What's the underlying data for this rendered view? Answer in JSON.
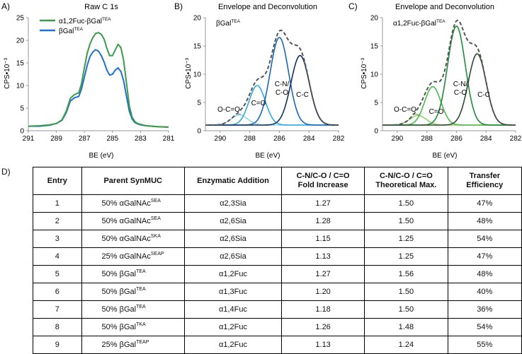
{
  "figure_labels": {
    "a": "A)",
    "b": "B)",
    "c": "C)",
    "d": "D)"
  },
  "colors": {
    "fuc_green": "#3c9a4a",
    "gal_blue": "#1f6fd0",
    "envelope_gray": "#555555",
    "baseline_blue": "#7fd0f0",
    "baseline_green": "#8ed26a"
  },
  "chart_data": [
    {
      "id": "A",
      "type": "line",
      "title": "Raw C 1s",
      "xlabel": "BE (eV)",
      "ylabel": "CPS•10⁻³",
      "xlim": [
        291,
        281
      ],
      "ylim": [
        0,
        25
      ],
      "xticks": [
        291,
        289,
        287,
        285,
        283,
        281
      ],
      "yticks": [
        0,
        5,
        10,
        15,
        20,
        25
      ],
      "legend": [
        "α1,2Fuc-βGal",
        "βGal"
      ],
      "legend_sup": [
        "TEA",
        "TEA"
      ],
      "series": [
        {
          "name": "α1,2Fuc-βGal",
          "sup": "TEA",
          "color": "#3c9a4a",
          "x": [
            291,
            290.2,
            289.5,
            289,
            288.6,
            288.3,
            288,
            287.7,
            287.4,
            287.2,
            287,
            286.8,
            286.6,
            286.4,
            286.2,
            286,
            285.8,
            285.6,
            285.4,
            285.2,
            285,
            284.8,
            284.6,
            284.4,
            284.2,
            284,
            283.8,
            283.6,
            283.4,
            283.2,
            283,
            282.6,
            282.2,
            281.8,
            281
          ],
          "values": [
            1.0,
            1.1,
            1.3,
            1.6,
            2.4,
            4.3,
            7.2,
            8.0,
            8.4,
            10.5,
            14.0,
            17.2,
            19.2,
            20.6,
            21.5,
            21.7,
            21.3,
            20.3,
            18.2,
            16.6,
            16.6,
            17.9,
            19.1,
            18.4,
            15.5,
            10.5,
            5.5,
            3.0,
            2.0,
            1.6,
            1.4,
            1.1,
            1.0,
            0.9,
            0.8
          ]
        },
        {
          "name": "βGal",
          "sup": "TEA",
          "color": "#1f6fd0",
          "x": [
            291,
            290.2,
            289.5,
            289,
            288.6,
            288.3,
            288,
            287.7,
            287.4,
            287.2,
            287,
            286.8,
            286.6,
            286.4,
            286.2,
            286,
            285.8,
            285.6,
            285.4,
            285.2,
            285,
            284.8,
            284.6,
            284.4,
            284.2,
            284,
            283.8,
            283.6,
            283.4,
            283.2,
            283,
            282.6,
            282.2,
            281.8,
            281
          ],
          "values": [
            1.0,
            1.0,
            1.2,
            1.6,
            2.3,
            4.0,
            6.6,
            7.3,
            7.6,
            9.3,
            11.9,
            14.5,
            16.4,
            17.4,
            17.9,
            17.6,
            16.6,
            15.2,
            13.4,
            12.3,
            12.5,
            13.4,
            13.9,
            13.1,
            11.0,
            7.6,
            4.3,
            2.6,
            1.8,
            1.5,
            1.3,
            1.1,
            1.0,
            0.9,
            0.8
          ]
        }
      ]
    },
    {
      "id": "B",
      "type": "line",
      "title": "Envelope and Deconvolution",
      "sample": "βGal",
      "sample_sup": "TEA",
      "xlabel": "BE (eV)",
      "ylabel": "CPS•10⁻³",
      "xlim": [
        291,
        282
      ],
      "ylim": [
        0,
        20
      ],
      "xticks": [
        290,
        288,
        286,
        284,
        282
      ],
      "yticks": [
        0,
        5,
        10,
        15,
        20
      ],
      "baseline": 1.0,
      "peaks": [
        {
          "label": "O-C=O",
          "center": 288.7,
          "height": 1.8,
          "sigma": 0.55,
          "color": "#8fd8f3"
        },
        {
          "label": "C=O",
          "center": 287.5,
          "height": 7.0,
          "sigma": 0.55,
          "color": "#2fa8e0"
        },
        {
          "label": "C-N/\nC-O",
          "center": 286.0,
          "height": 15.5,
          "sigma": 0.62,
          "color": "#1a67b8"
        },
        {
          "label": "C-C",
          "center": 284.6,
          "height": 12.3,
          "sigma": 0.62,
          "color": "#14305f"
        }
      ],
      "envelope": {
        "style": "dashed",
        "color": "#555555",
        "peak_max": 17.3
      }
    },
    {
      "id": "C",
      "type": "line",
      "title": "Envelope and Deconvolution",
      "sample": "α1,2Fuc-βGal",
      "sample_sup": "TEA",
      "xlabel": "BE (eV)",
      "ylabel": "CPS•10⁻³",
      "xlim": [
        291,
        282
      ],
      "ylim": [
        0,
        20
      ],
      "xticks": [
        290,
        288,
        286,
        284,
        282
      ],
      "yticks": [
        0,
        5,
        10,
        15,
        20
      ],
      "baseline": 1.0,
      "peaks": [
        {
          "label": "O-C=O",
          "center": 288.6,
          "height": 1.7,
          "sigma": 0.55,
          "color": "#8ed26a"
        },
        {
          "label": "C=O",
          "center": 287.6,
          "height": 6.8,
          "sigma": 0.55,
          "color": "#4fb84a"
        },
        {
          "label": "C-N/\nC-O",
          "center": 286.0,
          "height": 17.5,
          "sigma": 0.6,
          "color": "#1f8a3a"
        },
        {
          "label": "C-C",
          "center": 284.6,
          "height": 12.6,
          "sigma": 0.6,
          "color": "#2c4a2f"
        }
      ],
      "envelope": {
        "style": "dashed",
        "color": "#555555",
        "peak_max": 19.0
      }
    },
    {
      "id": "D",
      "type": "table",
      "columns": [
        "Entry",
        "Parent SynMUC",
        "Enzymatic Addition",
        "C-N/C-O / C=O\nFold Increase",
        "C-N/C-O / C=O\nTheoretical Max.",
        "Transfer\nEfficiency"
      ],
      "rows": [
        {
          "entry": "1",
          "parent": "50% αGalNAc",
          "parent_sup": "SEA",
          "enzyme": "α2,3Sia",
          "fold": "1.27",
          "max": "1.50",
          "eff": "47%"
        },
        {
          "entry": "2",
          "parent": "50% αGalNAc",
          "parent_sup": "SEA",
          "enzyme": "α2,6Sia",
          "fold": "1.28",
          "max": "1.50",
          "eff": "48%"
        },
        {
          "entry": "3",
          "parent": "50% αGalNAc",
          "parent_sup": "SKA",
          "enzyme": "α2,6Sia",
          "fold": "1.15",
          "max": "1.25",
          "eff": "54%"
        },
        {
          "entry": "4",
          "parent": "25% αGalNAc",
          "parent_sup": "SEAP",
          "enzyme": "α2,6Sia",
          "fold": "1.13",
          "max": "1.25",
          "eff": "47%"
        },
        {
          "entry": "5",
          "parent": "50% βGal",
          "parent_sup": "TEA",
          "enzyme": "α1,2Fuc",
          "fold": "1.27",
          "max": "1.56",
          "eff": "48%"
        },
        {
          "entry": "6",
          "parent": "50% βGal",
          "parent_sup": "TEA",
          "enzyme": "α1,3Fuc",
          "fold": "1.20",
          "max": "1.50",
          "eff": "40%"
        },
        {
          "entry": "7",
          "parent": "50% βGal",
          "parent_sup": "TEA",
          "enzyme": "α1,4Fuc",
          "fold": "1.18",
          "max": "1.50",
          "eff": "36%"
        },
        {
          "entry": "8",
          "parent": "50% βGal",
          "parent_sup": "TKA",
          "enzyme": "α1,2Fuc",
          "fold": "1.26",
          "max": "1.48",
          "eff": "54%"
        },
        {
          "entry": "9",
          "parent": "25% βGal",
          "parent_sup": "TEAP",
          "enzyme": "α1,2Fuc",
          "fold": "1.13",
          "max": "1.24",
          "eff": "55%"
        }
      ]
    }
  ]
}
